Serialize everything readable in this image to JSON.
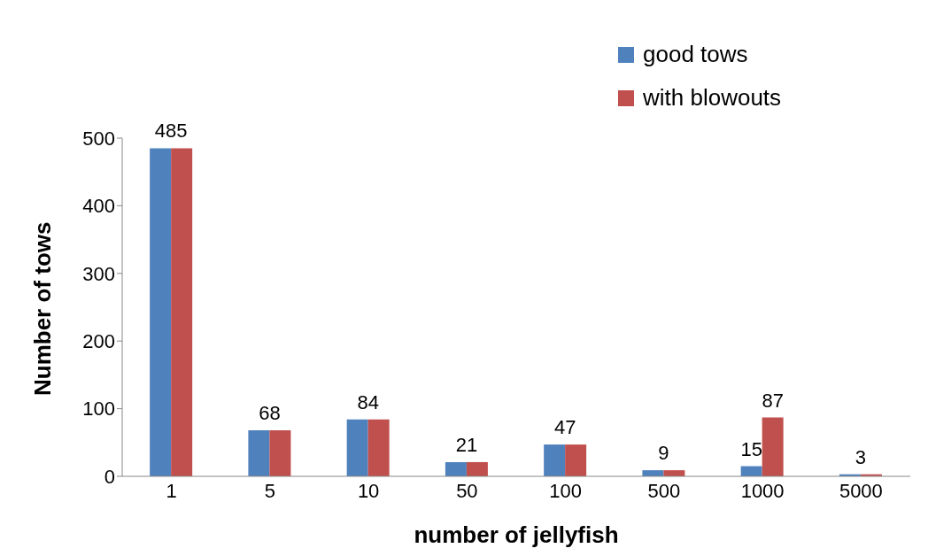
{
  "chart_data": {
    "type": "bar",
    "xlabel": "number of jellyfish",
    "ylabel": "Number of tows",
    "categories": [
      "1",
      "5",
      "10",
      "50",
      "100",
      "500",
      "1000",
      "5000"
    ],
    "series": [
      {
        "name": "good tows",
        "color": "#4f81bd",
        "values": [
          485,
          68,
          84,
          21,
          47,
          9,
          15,
          3
        ],
        "value_labels": [
          "485",
          "68",
          "84",
          "21",
          "47",
          "9",
          "15",
          "3"
        ]
      },
      {
        "name": "with blowouts",
        "color": "#c0504d",
        "values": [
          485,
          68,
          84,
          21,
          47,
          9,
          87,
          3
        ],
        "value_labels": [
          null,
          null,
          null,
          null,
          null,
          null,
          "87",
          null
        ]
      }
    ],
    "ylim": [
      0,
      500
    ],
    "yticks": [
      0,
      100,
      200,
      300,
      400,
      500
    ],
    "grid": false,
    "legend": "top right"
  }
}
